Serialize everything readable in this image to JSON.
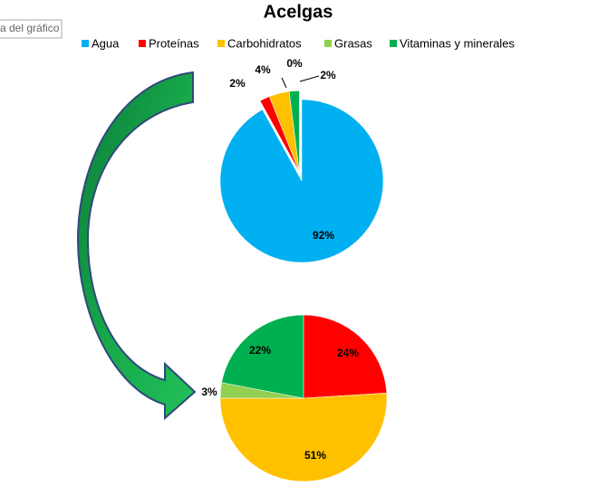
{
  "tooltip": "a del gráfico",
  "chart_data": [
    {
      "type": "pie",
      "title": "Acelgas",
      "categories": [
        "Agua",
        "Proteínas",
        "Carbohidratos",
        "Grasas",
        "Vitaminas y minerales"
      ],
      "colors": [
        "#00b0f0",
        "#ff0000",
        "#ffc000",
        "#92d050",
        "#00b050"
      ],
      "values": [
        92,
        2,
        4,
        0,
        2
      ],
      "value_labels": [
        "92%",
        "2%",
        "4%",
        "0%",
        "2%"
      ],
      "legend": "top"
    },
    {
      "type": "pie",
      "colors": [
        "#ff0000",
        "#ffc000",
        "#92d050",
        "#00b050"
      ],
      "values": [
        24,
        51,
        3,
        22
      ],
      "value_labels": [
        "24%",
        "51%",
        "3%",
        "22%"
      ]
    }
  ]
}
